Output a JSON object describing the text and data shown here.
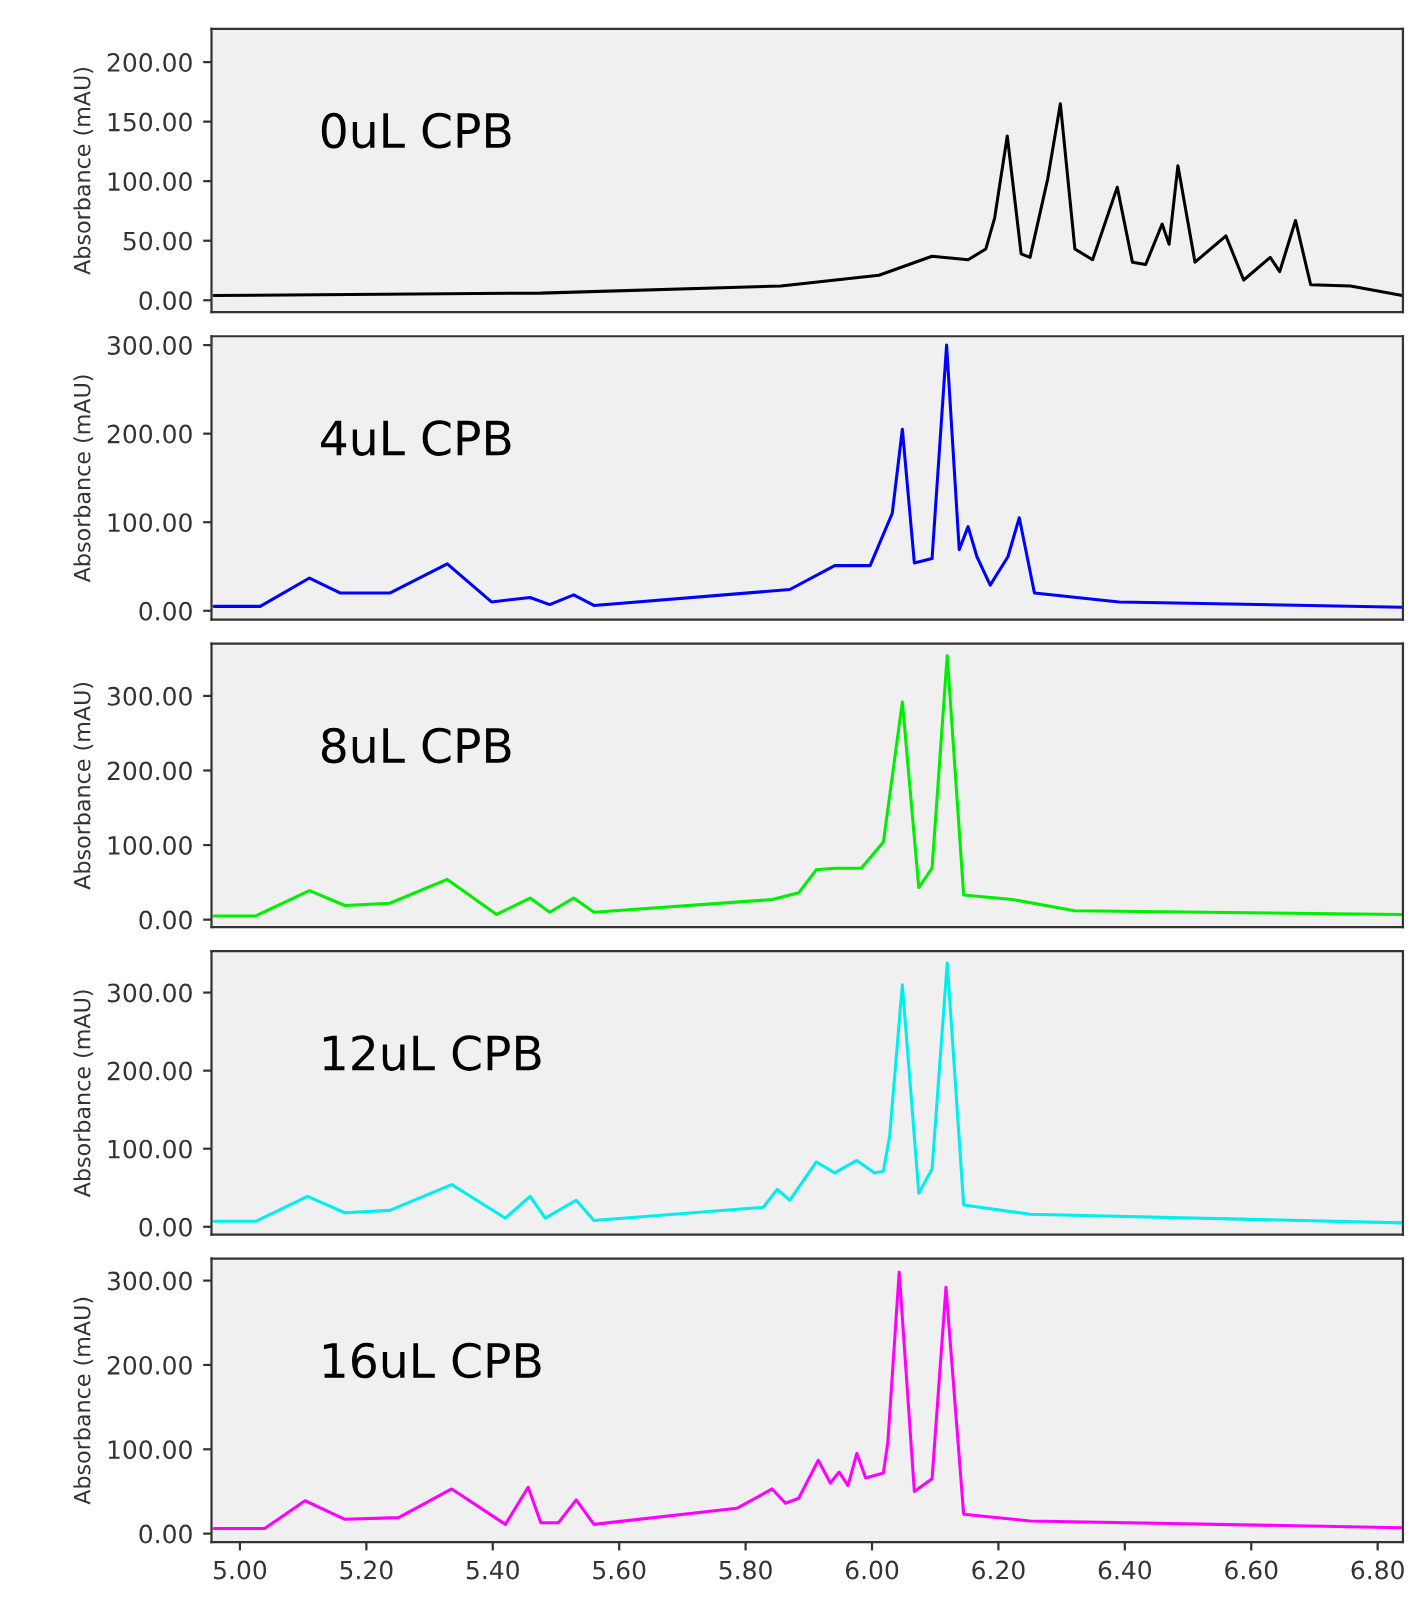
{
  "chart_data": [
    {
      "type": "line",
      "ylabel": "Absorbance (mAU)",
      "annotations": [
        "0uL CPB"
      ],
      "tick_labels": "y",
      "xlim": [
        4.955,
        6.84
      ],
      "ylim": [
        -10,
        228
      ],
      "yticks": [
        {
          "value": 0,
          "label": "0.00"
        },
        {
          "value": 50,
          "label": "50.00"
        },
        {
          "value": 100,
          "label": "100.00"
        },
        {
          "value": 150,
          "label": "150.00"
        },
        {
          "value": 200,
          "label": "200.00"
        }
      ],
      "x": [
        4.959,
        5.476,
        5.856,
        6.011,
        6.095,
        6.152,
        6.18,
        6.194,
        6.214,
        6.236,
        6.25,
        6.278,
        6.298,
        6.321,
        6.349,
        6.388,
        6.412,
        6.433,
        6.459,
        6.47,
        6.484,
        6.511,
        6.56,
        6.588,
        6.63,
        6.645,
        6.67,
        6.694,
        6.757,
        6.839
      ],
      "series": [
        {
          "color": "#000000",
          "values": [
            4,
            6,
            12,
            21,
            37,
            34,
            43,
            69,
            138,
            39,
            36,
            102,
            165,
            43,
            34,
            95,
            32,
            30,
            64,
            47,
            113,
            32,
            54,
            17,
            36,
            24,
            67,
            13,
            12,
            4
          ]
        }
      ]
    },
    {
      "type": "line",
      "ylabel": "Absorbance (mAU)",
      "annotations": [
        "4uL CPB"
      ],
      "tick_labels": "y",
      "xlim": [
        4.955,
        6.84
      ],
      "ylim": [
        -10,
        310
      ],
      "yticks": [
        {
          "value": 0,
          "label": "0.00"
        },
        {
          "value": 100,
          "label": "100.00"
        },
        {
          "value": 200,
          "label": "200.00"
        },
        {
          "value": 300,
          "label": "300.00"
        }
      ],
      "x": [
        4.959,
        5.032,
        5.11,
        5.159,
        5.237,
        5.328,
        5.398,
        5.459,
        5.49,
        5.528,
        5.56,
        5.87,
        5.941,
        5.997,
        6.032,
        6.048,
        6.067,
        6.095,
        6.118,
        6.138,
        6.152,
        6.166,
        6.187,
        6.215,
        6.233,
        6.257,
        6.391,
        6.839
      ],
      "series": [
        {
          "color": "#0000ff",
          "values": [
            5,
            5,
            37,
            20,
            20,
            53,
            10,
            15,
            7,
            18,
            6,
            24,
            51,
            51,
            110,
            205,
            54,
            59,
            300,
            69,
            95,
            61,
            29,
            61,
            105,
            20,
            10,
            4
          ]
        }
      ]
    },
    {
      "type": "line",
      "ylabel": "Absorbance (mAU)",
      "annotations": [
        "8uL CPB"
      ],
      "tick_labels": "y",
      "xlim": [
        4.955,
        6.84
      ],
      "ylim": [
        -10,
        370
      ],
      "yticks": [
        {
          "value": 0,
          "label": "0.00"
        },
        {
          "value": 100,
          "label": "100.00"
        },
        {
          "value": 200,
          "label": "200.00"
        },
        {
          "value": 300,
          "label": "300.00"
        }
      ],
      "x": [
        4.959,
        5.025,
        5.11,
        5.166,
        5.237,
        5.328,
        5.406,
        5.459,
        5.49,
        5.528,
        5.56,
        5.842,
        5.884,
        5.912,
        5.941,
        5.983,
        6.018,
        6.048,
        6.074,
        6.095,
        6.119,
        6.145,
        6.222,
        6.321,
        6.839
      ],
      "series": [
        {
          "color": "#00ee00",
          "values": [
            5,
            5,
            39,
            19,
            22,
            54,
            7,
            29,
            10,
            29,
            10,
            27,
            36,
            67,
            69,
            69,
            104,
            292,
            43,
            69,
            354,
            33,
            27,
            12,
            7
          ]
        }
      ]
    },
    {
      "type": "line",
      "ylabel": "Absorbance (mAU)",
      "annotations": [
        "12uL CPB"
      ],
      "tick_labels": "y",
      "xlim": [
        4.955,
        6.84
      ],
      "ylim": [
        -10,
        353
      ],
      "yticks": [
        {
          "value": 0,
          "label": "0.00"
        },
        {
          "value": 100,
          "label": "100.00"
        },
        {
          "value": 200,
          "label": "200.00"
        },
        {
          "value": 300,
          "label": "300.00"
        }
      ],
      "x": [
        4.959,
        5.025,
        5.107,
        5.166,
        5.237,
        5.335,
        5.42,
        5.459,
        5.483,
        5.532,
        5.56,
        5.828,
        5.85,
        5.87,
        5.912,
        5.941,
        5.976,
        6.004,
        6.018,
        6.028,
        6.048,
        6.074,
        6.095,
        6.119,
        6.145,
        6.25,
        6.839
      ],
      "series": [
        {
          "color": "#00eeee",
          "values": [
            7,
            7,
            39,
            18,
            21,
            54,
            11,
            39,
            11,
            34,
            8,
            25,
            48,
            34,
            83,
            69,
            85,
            69,
            71,
            117,
            310,
            43,
            74,
            338,
            28,
            16,
            5
          ]
        }
      ]
    },
    {
      "type": "line",
      "ylabel": "Absorbance (mAU)",
      "annotations": [
        "16uL CPB"
      ],
      "xlim": [
        4.955,
        6.84
      ],
      "ylim": [
        -10,
        326
      ],
      "xticks": [
        {
          "value": 5.0,
          "label": "5.00"
        },
        {
          "value": 5.2,
          "label": "5.20"
        },
        {
          "value": 5.4,
          "label": "5.40"
        },
        {
          "value": 5.6,
          "label": "5.60"
        },
        {
          "value": 5.8,
          "label": "5.80"
        },
        {
          "value": 6.0,
          "label": "6.00"
        },
        {
          "value": 6.2,
          "label": "6.20"
        },
        {
          "value": 6.4,
          "label": "6.40"
        },
        {
          "value": 6.6,
          "label": "6.60"
        },
        {
          "value": 6.8,
          "label": "6.80"
        }
      ],
      "yticks": [
        {
          "value": 0,
          "label": "0.00"
        },
        {
          "value": 100,
          "label": "100.00"
        },
        {
          "value": 200,
          "label": "200.00"
        },
        {
          "value": 300,
          "label": "300.00"
        }
      ],
      "x": [
        4.959,
        5.039,
        5.103,
        5.166,
        5.251,
        5.335,
        5.42,
        5.456,
        5.476,
        5.504,
        5.532,
        5.56,
        5.786,
        5.842,
        5.863,
        5.884,
        5.915,
        5.934,
        5.948,
        5.962,
        5.976,
        5.99,
        6.018,
        6.025,
        6.043,
        6.067,
        6.095,
        6.117,
        6.145,
        6.25,
        6.839
      ],
      "series": [
        {
          "color": "#ff00ff",
          "values": [
            6,
            6,
            39,
            17,
            19,
            53,
            11,
            55,
            13,
            13,
            40,
            11,
            30,
            53,
            36,
            42,
            87,
            60,
            73,
            57,
            95,
            66,
            72,
            108,
            310,
            50,
            65,
            292,
            23,
            15,
            7
          ]
        }
      ]
    }
  ]
}
